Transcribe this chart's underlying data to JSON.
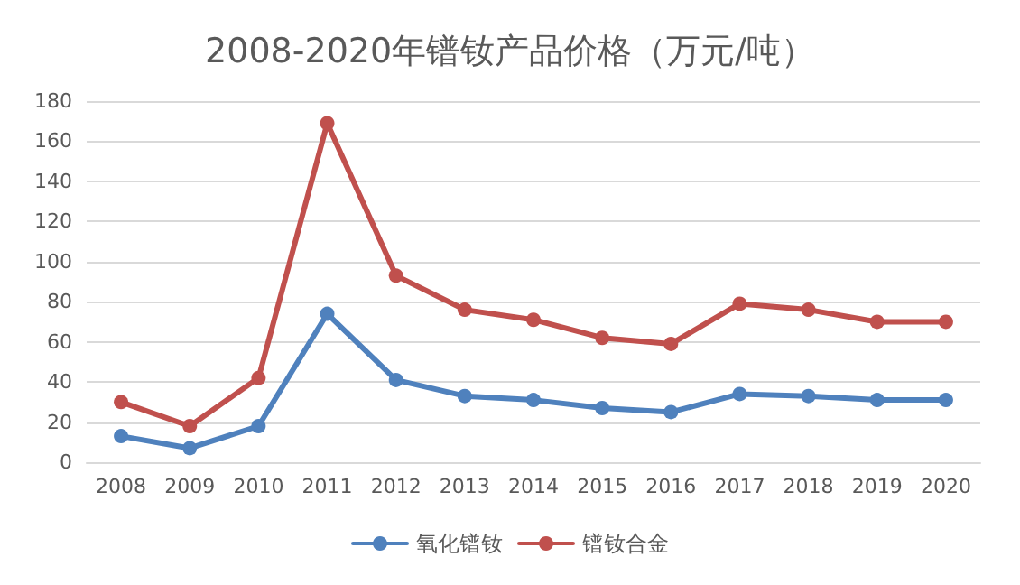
{
  "chart_data": {
    "type": "line",
    "title": "2008-2020年镨钕产品价格（万元/吨）",
    "categories": [
      "2008",
      "2009",
      "2010",
      "2011",
      "2012",
      "2013",
      "2014",
      "2015",
      "2016",
      "2017",
      "2018",
      "2019",
      "2020"
    ],
    "series": [
      {
        "name": "氧化镨钕",
        "color": "#4f81bd",
        "values": [
          13,
          7,
          18,
          74,
          41,
          33,
          31,
          27,
          25,
          34,
          33,
          31,
          31
        ]
      },
      {
        "name": "镨钕合金",
        "color": "#c0504d",
        "values": [
          30,
          18,
          42,
          169,
          93,
          76,
          71,
          62,
          59,
          79,
          76,
          70,
          70
        ]
      }
    ],
    "ylim": [
      0,
      180
    ],
    "yticks": [
      0,
      20,
      40,
      60,
      80,
      100,
      120,
      140,
      160,
      180
    ],
    "grid": "y",
    "legend": "bottom",
    "marker": "circle",
    "line_style": "solid"
  }
}
